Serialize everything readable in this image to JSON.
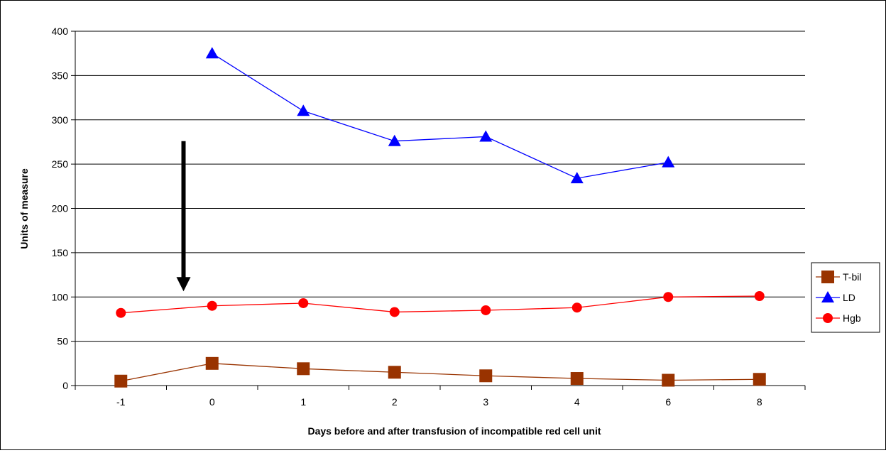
{
  "chart_data": {
    "type": "line",
    "categories": [
      "-1",
      "0",
      "1",
      "2",
      "3",
      "4",
      "6",
      "8"
    ],
    "ylim": [
      0,
      400
    ],
    "yticks": [
      0,
      50,
      100,
      150,
      200,
      250,
      300,
      350,
      400
    ],
    "xlabel": "Days before and after transfusion of incompatible red cell unit",
    "ylabel": "Units of measure",
    "grid": "horizontal",
    "legend_position": "right",
    "annotations": [
      {
        "type": "arrow",
        "direction": "down",
        "between_categories": [
          "-1",
          "0"
        ],
        "from_value": 276,
        "to_value": 108
      }
    ],
    "series": [
      {
        "name": "T-bil",
        "marker": "square",
        "color": "#993300",
        "values": [
          5,
          25,
          19,
          15,
          11,
          8,
          6,
          7
        ]
      },
      {
        "name": "LD",
        "marker": "triangle",
        "color": "#0000FF",
        "values": [
          null,
          375,
          310,
          276,
          281,
          234,
          252,
          null
        ]
      },
      {
        "name": "Hgb",
        "marker": "circle",
        "color": "#FF0000",
        "values": [
          82,
          90,
          93,
          83,
          85,
          88,
          100,
          101
        ]
      }
    ]
  }
}
